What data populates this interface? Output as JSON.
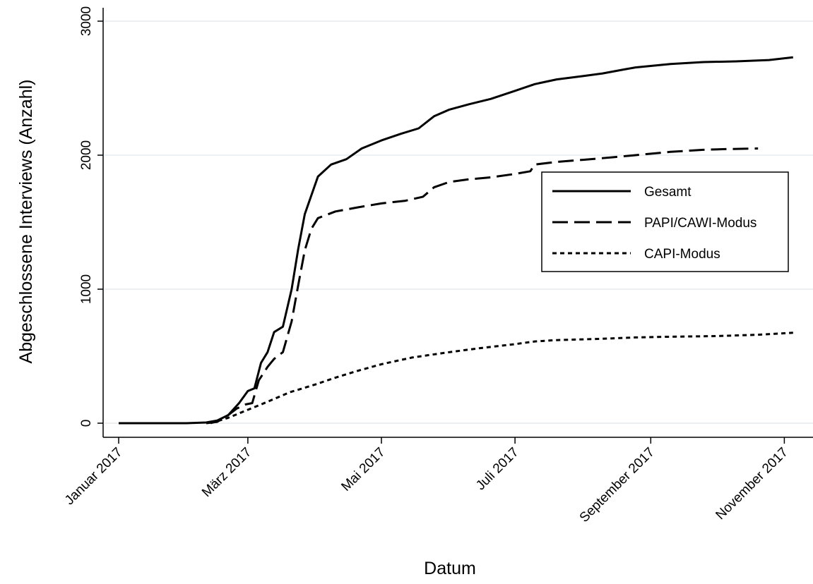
{
  "chart_data": {
    "type": "line",
    "title": "",
    "xlabel": "Datum",
    "ylabel": "Abgeschlossene Interviews (Anzahl)",
    "xlim": [
      "2017-01-01",
      "2017-11-05"
    ],
    "ylim": [
      -100,
      3100
    ],
    "grid": true,
    "legend_position": "center-right",
    "yticks": [
      0,
      1000,
      2000,
      3000
    ],
    "xticks": [
      {
        "date": "2017-01-01",
        "label": "Januar 2017"
      },
      {
        "date": "2017-03-01",
        "label": "März 2017"
      },
      {
        "date": "2017-05-01",
        "label": "Mai 2017"
      },
      {
        "date": "2017-07-01",
        "label": "Juli 2017"
      },
      {
        "date": "2017-09-01",
        "label": "September 2017"
      },
      {
        "date": "2017-11-01",
        "label": "November 2017"
      }
    ],
    "series": [
      {
        "name": "Gesamt",
        "style": "solid",
        "points": [
          [
            "2017-01-01",
            0
          ],
          [
            "2017-01-20",
            0
          ],
          [
            "2017-02-01",
            0
          ],
          [
            "2017-02-10",
            5
          ],
          [
            "2017-02-15",
            20
          ],
          [
            "2017-02-20",
            60
          ],
          [
            "2017-02-25",
            150
          ],
          [
            "2017-03-01",
            240
          ],
          [
            "2017-03-04",
            260
          ],
          [
            "2017-03-07",
            450
          ],
          [
            "2017-03-10",
            530
          ],
          [
            "2017-03-13",
            680
          ],
          [
            "2017-03-17",
            720
          ],
          [
            "2017-03-21",
            1000
          ],
          [
            "2017-03-24",
            1300
          ],
          [
            "2017-03-27",
            1560
          ],
          [
            "2017-03-30",
            1700
          ],
          [
            "2017-04-02",
            1840
          ],
          [
            "2017-04-08",
            1930
          ],
          [
            "2017-04-15",
            1970
          ],
          [
            "2017-04-22",
            2050
          ],
          [
            "2017-05-01",
            2110
          ],
          [
            "2017-05-10",
            2160
          ],
          [
            "2017-05-18",
            2200
          ],
          [
            "2017-05-25",
            2290
          ],
          [
            "2017-06-01",
            2340
          ],
          [
            "2017-06-10",
            2380
          ],
          [
            "2017-06-20",
            2420
          ],
          [
            "2017-07-01",
            2480
          ],
          [
            "2017-07-10",
            2530
          ],
          [
            "2017-07-20",
            2565
          ],
          [
            "2017-08-01",
            2590
          ],
          [
            "2017-08-10",
            2610
          ],
          [
            "2017-08-20",
            2640
          ],
          [
            "2017-08-25",
            2655
          ],
          [
            "2017-09-10",
            2680
          ],
          [
            "2017-09-25",
            2695
          ],
          [
            "2017-10-10",
            2700
          ],
          [
            "2017-10-25",
            2710
          ],
          [
            "2017-11-05",
            2730
          ]
        ]
      },
      {
        "name": "PAPI/CAWI-Modus",
        "style": "dashed",
        "points": [
          [
            "2017-02-10",
            0
          ],
          [
            "2017-02-15",
            10
          ],
          [
            "2017-02-20",
            60
          ],
          [
            "2017-02-24",
            110
          ],
          [
            "2017-02-28",
            140
          ],
          [
            "2017-03-03",
            150
          ],
          [
            "2017-03-06",
            320
          ],
          [
            "2017-03-10",
            420
          ],
          [
            "2017-03-13",
            480
          ],
          [
            "2017-03-17",
            530
          ],
          [
            "2017-03-21",
            760
          ],
          [
            "2017-03-24",
            1030
          ],
          [
            "2017-03-27",
            1290
          ],
          [
            "2017-03-30",
            1450
          ],
          [
            "2017-04-02",
            1530
          ],
          [
            "2017-04-10",
            1580
          ],
          [
            "2017-04-20",
            1610
          ],
          [
            "2017-05-01",
            1640
          ],
          [
            "2017-05-12",
            1660
          ],
          [
            "2017-05-20",
            1690
          ],
          [
            "2017-05-25",
            1760
          ],
          [
            "2017-06-01",
            1800
          ],
          [
            "2017-06-10",
            1820
          ],
          [
            "2017-06-20",
            1835
          ],
          [
            "2017-07-01",
            1860
          ],
          [
            "2017-07-08",
            1880
          ],
          [
            "2017-07-10",
            1930
          ],
          [
            "2017-07-20",
            1950
          ],
          [
            "2017-08-01",
            1965
          ],
          [
            "2017-08-15",
            1985
          ],
          [
            "2017-08-25",
            2000
          ],
          [
            "2017-09-10",
            2025
          ],
          [
            "2017-09-25",
            2040
          ],
          [
            "2017-10-05",
            2045
          ],
          [
            "2017-10-20",
            2050
          ]
        ]
      },
      {
        "name": "CAPI-Modus",
        "style": "dotted",
        "points": [
          [
            "2017-02-12",
            0
          ],
          [
            "2017-02-20",
            40
          ],
          [
            "2017-03-01",
            100
          ],
          [
            "2017-03-10",
            160
          ],
          [
            "2017-03-20",
            230
          ],
          [
            "2017-04-01",
            290
          ],
          [
            "2017-04-10",
            340
          ],
          [
            "2017-04-20",
            390
          ],
          [
            "2017-05-01",
            440
          ],
          [
            "2017-05-15",
            490
          ],
          [
            "2017-06-01",
            530
          ],
          [
            "2017-06-15",
            560
          ],
          [
            "2017-07-01",
            590
          ],
          [
            "2017-07-10",
            610
          ],
          [
            "2017-07-20",
            620
          ],
          [
            "2017-08-10",
            630
          ],
          [
            "2017-08-25",
            640
          ],
          [
            "2017-09-10",
            645
          ],
          [
            "2017-10-01",
            650
          ],
          [
            "2017-10-20",
            660
          ],
          [
            "2017-11-05",
            675
          ]
        ]
      }
    ]
  }
}
